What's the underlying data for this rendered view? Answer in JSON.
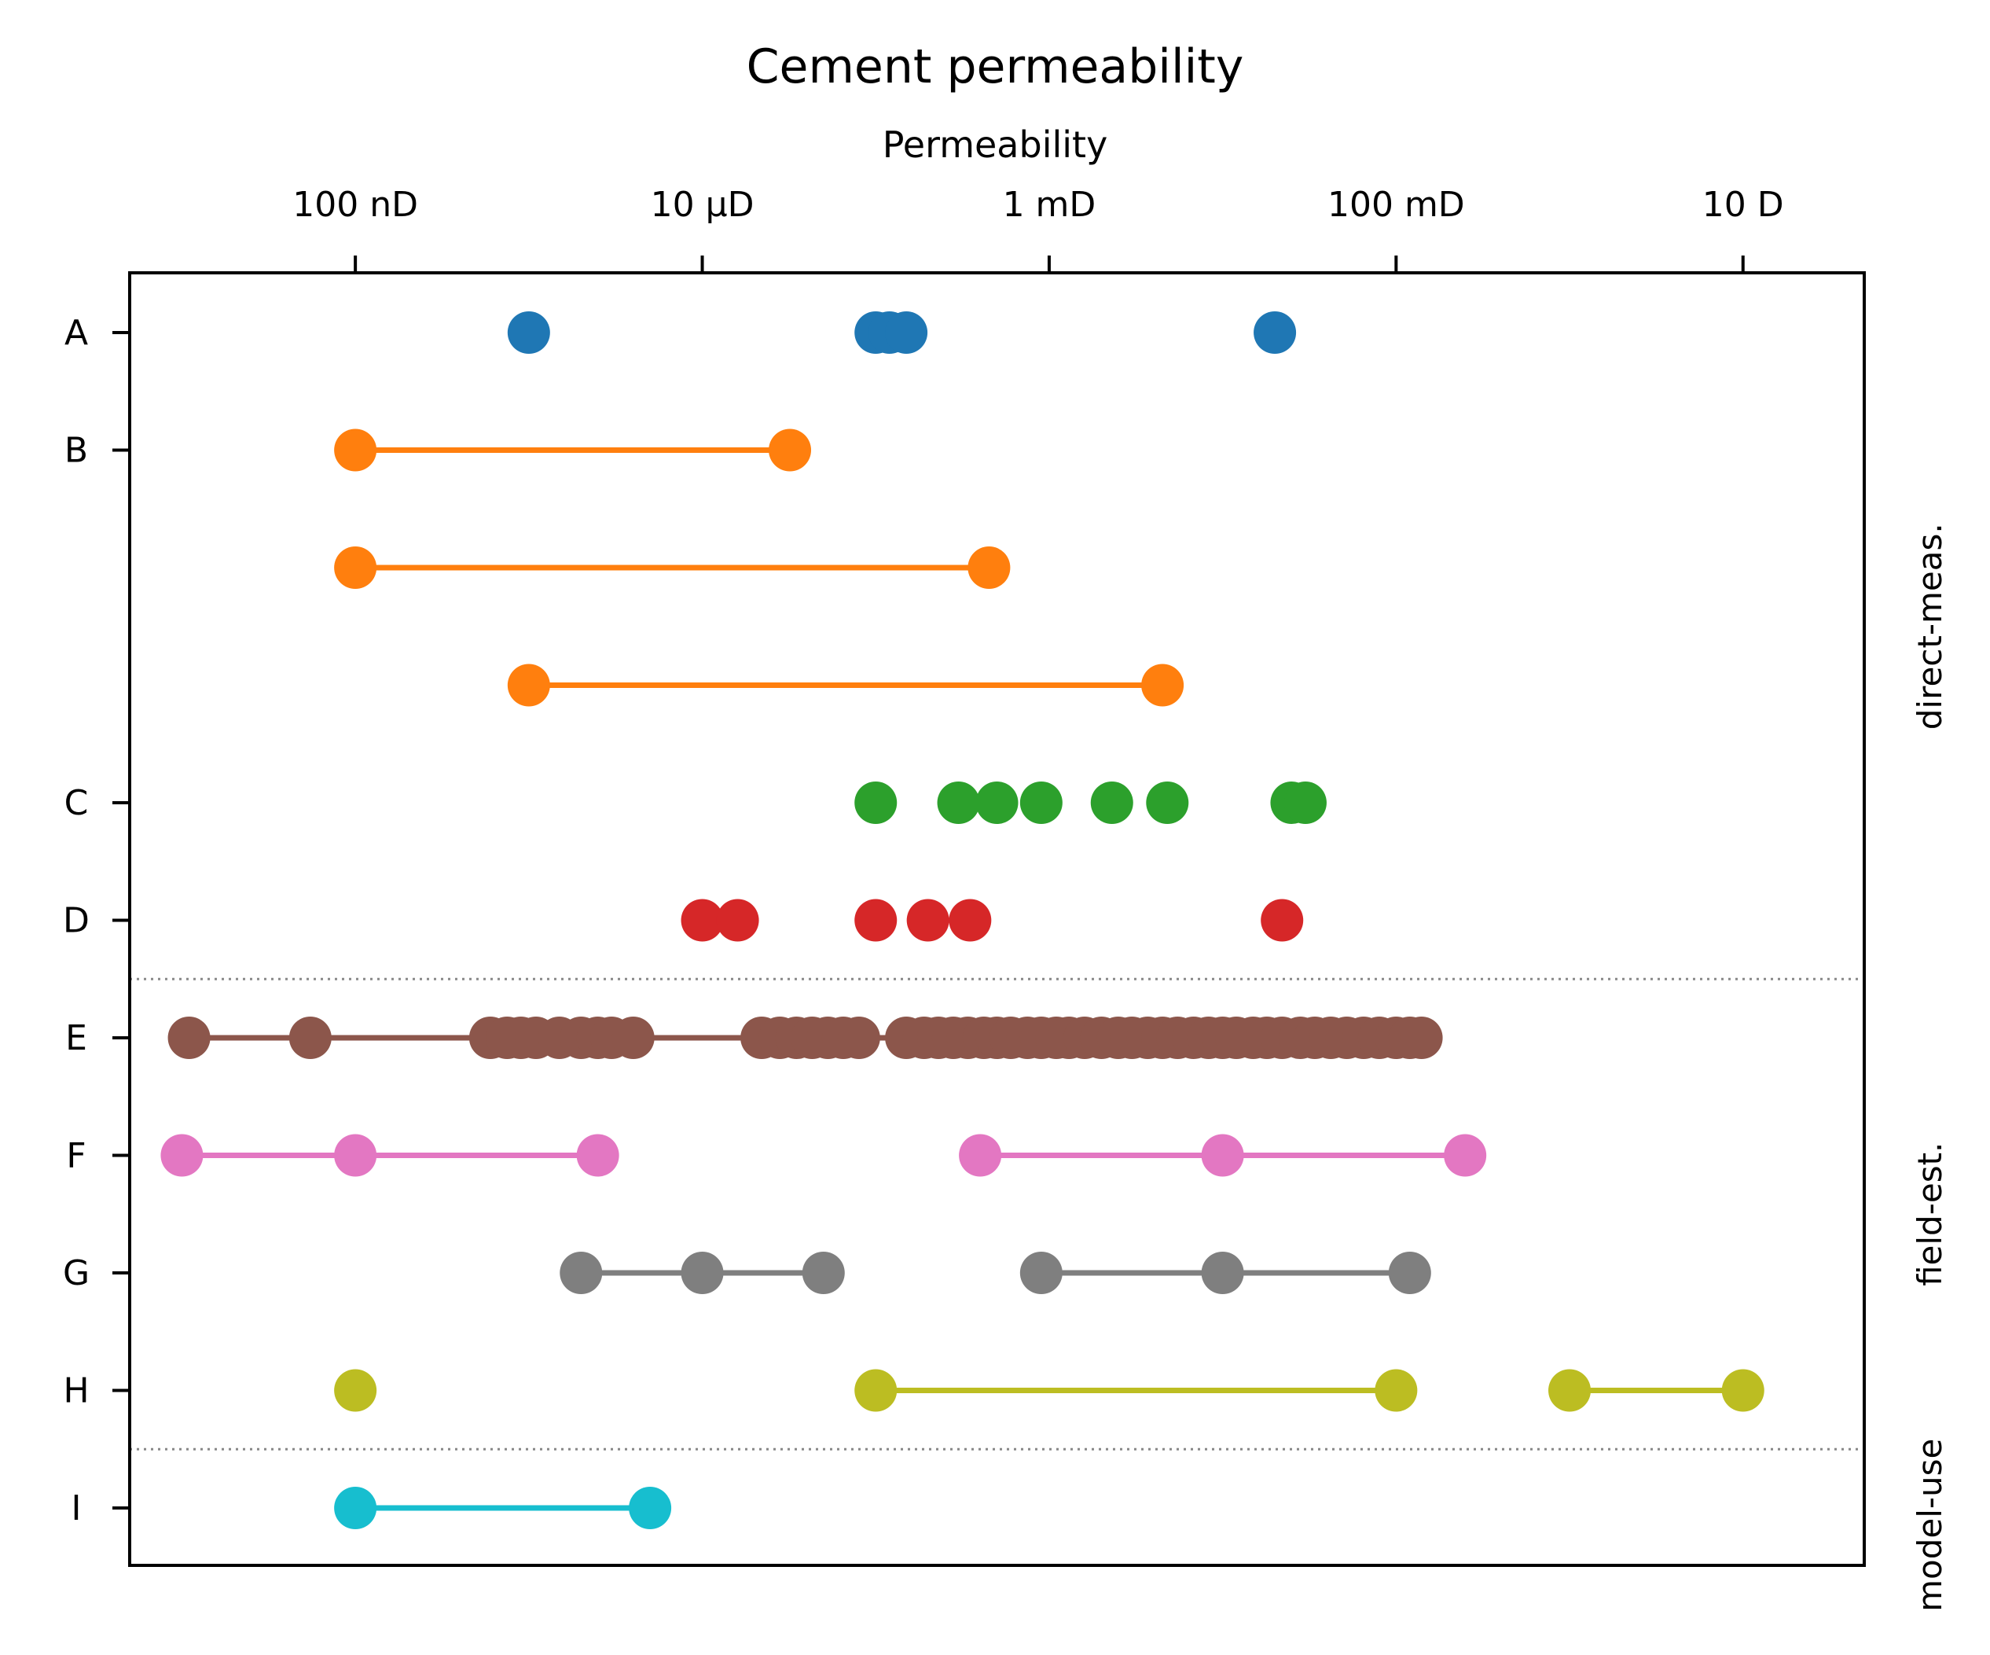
{
  "chart_data": {
    "type": "scatter",
    "title": "Cement permeability",
    "xlabel": "Permeability",
    "xscale": "log",
    "x_unit": "D",
    "xlim": [
      5e-09,
      50
    ],
    "x_ticks": [
      {
        "value": 1e-07,
        "label": "100 nD"
      },
      {
        "value": 1e-05,
        "label": "10 μD"
      },
      {
        "value": 0.001,
        "label": "1 mD"
      },
      {
        "value": 0.1,
        "label": "100 mD"
      },
      {
        "value": 10,
        "label": "10 D"
      }
    ],
    "grid": false,
    "rows": [
      {
        "label": "A",
        "color": "#1f77b4",
        "connected": false,
        "values": [
          1e-06,
          0.0001,
          0.00012,
          0.00015,
          0.02
        ]
      },
      {
        "label": "B",
        "color": "#ff7f0e",
        "connected": true,
        "values": [
          1e-07,
          3.2e-05
        ]
      },
      {
        "label": "",
        "color": "#ff7f0e",
        "connected": true,
        "values": [
          1e-07,
          0.00045
        ]
      },
      {
        "label": "",
        "color": "#ff7f0e",
        "connected": true,
        "values": [
          1e-06,
          0.0045
        ]
      },
      {
        "label": "C",
        "color": "#2ca02c",
        "connected": false,
        "values": [
          0.0001,
          0.0003,
          0.0005,
          0.0009,
          0.0023,
          0.0048,
          0.025,
          0.03
        ]
      },
      {
        "label": "D",
        "color": "#d62728",
        "connected": false,
        "values": [
          1e-05,
          1.6e-05,
          0.0001,
          0.0002,
          0.00035,
          0.022
        ]
      },
      {
        "label": "E",
        "color": "#8c564b",
        "connected": true,
        "values": [
          1.1e-08,
          5.5e-08,
          6e-07,
          7.5e-07,
          9e-07,
          1.1e-06,
          1.5e-06,
          2e-06,
          2.5e-06,
          3e-06,
          4e-06,
          2.2e-05,
          2.8e-05,
          3.5e-05,
          4.3e-05,
          5.3e-05,
          6.5e-05,
          8e-05,
          0.00015,
          0.00019,
          0.00023,
          0.00028,
          0.00034,
          0.00042,
          0.0005,
          0.0006,
          0.00075,
          0.0009,
          0.0011,
          0.0013,
          0.0016,
          0.002,
          0.0025,
          0.003,
          0.0037,
          0.0045,
          0.0055,
          0.0068,
          0.0083,
          0.01,
          0.012,
          0.015,
          0.018,
          0.022,
          0.028,
          0.034,
          0.042,
          0.052,
          0.065,
          0.08,
          0.1,
          0.12,
          0.14
        ]
      },
      {
        "label": "F",
        "color": "#e377c2",
        "connected": true,
        "segments": [
          [
            1e-08,
            1e-07,
            2.5e-06
          ],
          [
            0.0004,
            0.01,
            0.25
          ]
        ]
      },
      {
        "label": "G",
        "color": "#7f7f7f",
        "connected": true,
        "segments": [
          [
            2e-06,
            1e-05,
            5e-05
          ],
          [
            0.0009,
            0.01,
            0.12
          ]
        ]
      },
      {
        "label": "H",
        "color": "#bcbd22",
        "connected": true,
        "segments": [
          [
            1e-07
          ],
          [
            0.0001,
            0.1
          ],
          [
            1,
            10
          ]
        ]
      },
      {
        "label": "I",
        "color": "#17becf",
        "connected": true,
        "values": [
          1e-07,
          5e-06
        ]
      }
    ],
    "side_labels": [
      {
        "text": "direct-meas.",
        "from_row": 0,
        "to_row": 5
      },
      {
        "text": "field-est.",
        "from_row": 6,
        "to_row": 9
      },
      {
        "text": "model-use",
        "from_row": 9,
        "to_row": 10
      }
    ],
    "separators_after_rows": [
      5,
      9
    ]
  }
}
